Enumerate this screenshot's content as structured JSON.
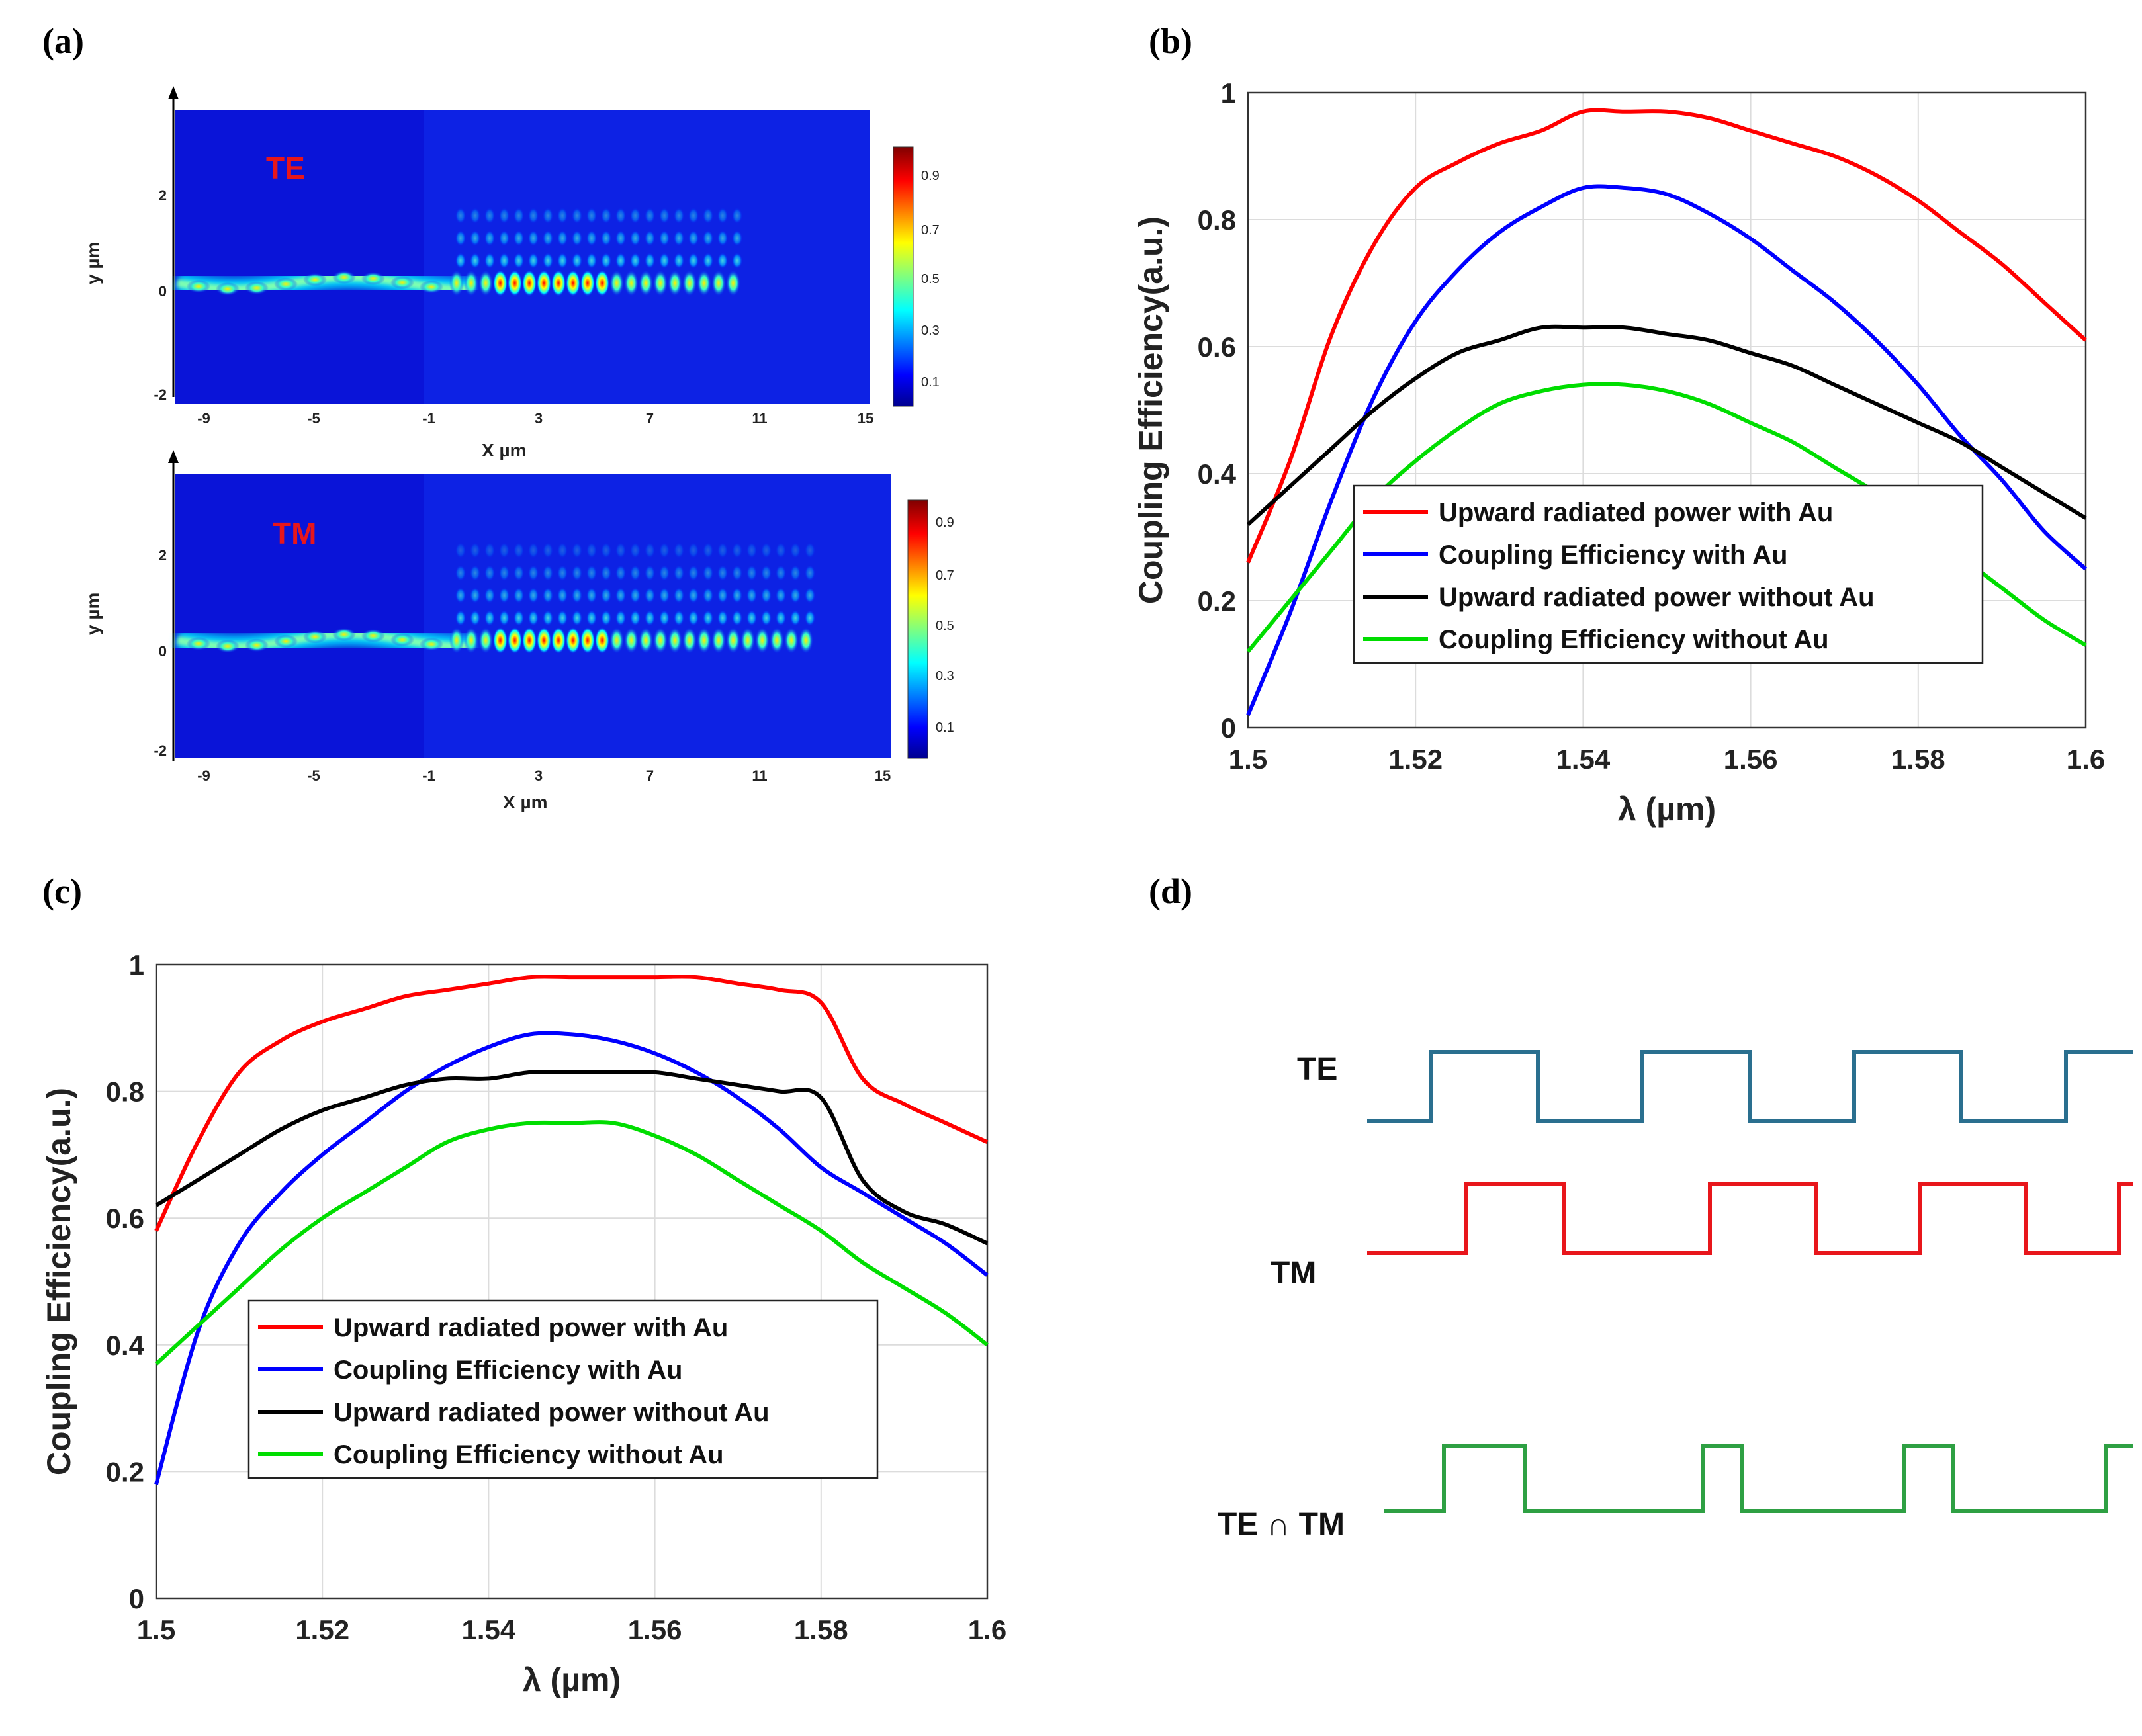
{
  "panels": {
    "a": {
      "label": "(a)",
      "maps": [
        {
          "mode": "TE",
          "xlabel": "X µm",
          "ylabel": "y µm",
          "xticks": [
            "-9",
            "-5",
            "-1",
            "3",
            "7",
            "11",
            "15"
          ],
          "yticks": [
            "2",
            "0",
            "-2"
          ],
          "colorbar_ticks": [
            "0.9",
            "0.7",
            "0.5",
            "0.3",
            "0.1"
          ]
        },
        {
          "mode": "TM",
          "xlabel": "X µm",
          "ylabel": "y µm",
          "xticks": [
            "-9",
            "-5",
            "-1",
            "3",
            "7",
            "11",
            "15"
          ],
          "yticks": [
            "2",
            "0",
            "-2"
          ],
          "colorbar_ticks": [
            "0.9",
            "0.7",
            "0.5",
            "0.3",
            "0.1"
          ]
        }
      ]
    },
    "b": {
      "label": "(b)"
    },
    "c": {
      "label": "(c)"
    },
    "d": {
      "label": "(d)",
      "signals": [
        {
          "name": "TE",
          "color": "#2a6f8f",
          "levels": [
            0,
            1,
            0,
            1,
            0,
            1,
            0,
            1
          ]
        },
        {
          "name": "TM",
          "color": "#e8161b",
          "levels": [
            0,
            1,
            0,
            1,
            0,
            1,
            0,
            1
          ]
        },
        {
          "name": "TE ∩ TM",
          "color": "#2ea043",
          "levels": [
            0,
            1,
            0,
            1,
            0,
            1,
            0,
            1
          ]
        }
      ]
    }
  },
  "chart_data": [
    {
      "panel": "b",
      "type": "line",
      "xlabel": "λ (µm)",
      "ylabel": "Coupling Efficiency(a.u.)",
      "xlim": [
        1.5,
        1.6
      ],
      "ylim": [
        0,
        1
      ],
      "xticks": [
        "1.5",
        "1.52",
        "1.54",
        "1.56",
        "1.58",
        "1.6"
      ],
      "yticks": [
        "0",
        "0.2",
        "0.4",
        "0.6",
        "0.8",
        "1"
      ],
      "grid": true,
      "legend_position": "center",
      "x": [
        1.5,
        1.505,
        1.51,
        1.515,
        1.52,
        1.525,
        1.53,
        1.535,
        1.54,
        1.545,
        1.55,
        1.555,
        1.56,
        1.565,
        1.57,
        1.575,
        1.58,
        1.585,
        1.59,
        1.595,
        1.6
      ],
      "series": [
        {
          "name": "Upward radiated power with Au",
          "color": "#ff0000",
          "values": [
            0.26,
            0.42,
            0.62,
            0.76,
            0.85,
            0.89,
            0.92,
            0.94,
            0.97,
            0.97,
            0.97,
            0.96,
            0.94,
            0.92,
            0.9,
            0.87,
            0.83,
            0.78,
            0.73,
            0.67,
            0.61
          ]
        },
        {
          "name": "Coupling Efficiency with Au",
          "color": "#0000ff",
          "values": [
            0.02,
            0.18,
            0.36,
            0.52,
            0.64,
            0.72,
            0.78,
            0.82,
            0.85,
            0.85,
            0.84,
            0.81,
            0.77,
            0.72,
            0.67,
            0.61,
            0.54,
            0.46,
            0.39,
            0.31,
            0.25
          ]
        },
        {
          "name": "Upward radiated power without Au",
          "color": "#000000",
          "values": [
            0.32,
            0.38,
            0.44,
            0.5,
            0.55,
            0.59,
            0.61,
            0.63,
            0.63,
            0.63,
            0.62,
            0.61,
            0.59,
            0.57,
            0.54,
            0.51,
            0.48,
            0.45,
            0.41,
            0.37,
            0.33
          ]
        },
        {
          "name": "Coupling Efficiency without Au",
          "color": "#00dd00",
          "values": [
            0.12,
            0.2,
            0.28,
            0.36,
            0.42,
            0.47,
            0.51,
            0.53,
            0.54,
            0.54,
            0.53,
            0.51,
            0.48,
            0.45,
            0.41,
            0.37,
            0.32,
            0.27,
            0.22,
            0.17,
            0.13
          ]
        }
      ]
    },
    {
      "panel": "c",
      "type": "line",
      "xlabel": "λ (µm)",
      "ylabel": "Coupling Efficiency(a.u.)",
      "xlim": [
        1.5,
        1.6
      ],
      "ylim": [
        0,
        1
      ],
      "xticks": [
        "1.5",
        "1.52",
        "1.54",
        "1.56",
        "1.58",
        "1.6"
      ],
      "yticks": [
        "0",
        "0.2",
        "0.4",
        "0.6",
        "0.8",
        "1"
      ],
      "grid": true,
      "legend_position": "center",
      "x": [
        1.5,
        1.505,
        1.51,
        1.515,
        1.52,
        1.525,
        1.53,
        1.535,
        1.54,
        1.545,
        1.55,
        1.555,
        1.56,
        1.565,
        1.57,
        1.575,
        1.58,
        1.585,
        1.59,
        1.595,
        1.6
      ],
      "series": [
        {
          "name": "Upward radiated power with Au",
          "color": "#ff0000",
          "values": [
            0.58,
            0.72,
            0.83,
            0.88,
            0.91,
            0.93,
            0.95,
            0.96,
            0.97,
            0.98,
            0.98,
            0.98,
            0.98,
            0.98,
            0.97,
            0.96,
            0.94,
            0.82,
            0.78,
            0.75,
            0.72
          ]
        },
        {
          "name": "Coupling Efficiency with Au",
          "color": "#0000ff",
          "values": [
            0.18,
            0.42,
            0.56,
            0.64,
            0.7,
            0.75,
            0.8,
            0.84,
            0.87,
            0.89,
            0.89,
            0.88,
            0.86,
            0.83,
            0.79,
            0.74,
            0.68,
            0.64,
            0.6,
            0.56,
            0.51
          ]
        },
        {
          "name": "Upward radiated power without Au",
          "color": "#000000",
          "values": [
            0.62,
            0.66,
            0.7,
            0.74,
            0.77,
            0.79,
            0.81,
            0.82,
            0.82,
            0.83,
            0.83,
            0.83,
            0.83,
            0.82,
            0.81,
            0.8,
            0.79,
            0.66,
            0.61,
            0.59,
            0.56
          ]
        },
        {
          "name": "Coupling Efficiency without Au",
          "color": "#00dd00",
          "values": [
            0.37,
            0.43,
            0.49,
            0.55,
            0.6,
            0.64,
            0.68,
            0.72,
            0.74,
            0.75,
            0.75,
            0.75,
            0.73,
            0.7,
            0.66,
            0.62,
            0.58,
            0.53,
            0.49,
            0.45,
            0.4
          ]
        }
      ]
    }
  ]
}
